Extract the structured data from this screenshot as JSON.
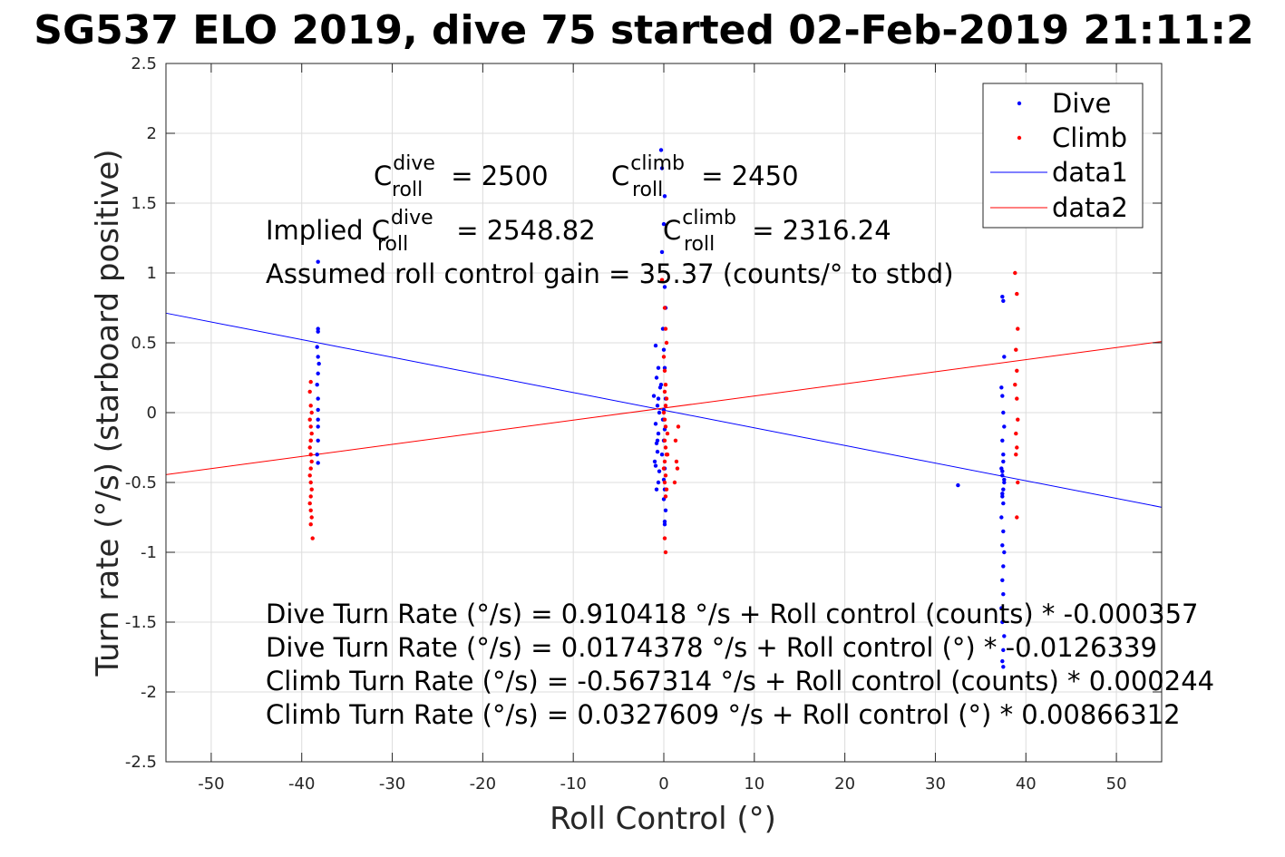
{
  "chart_data": {
    "type": "scatter",
    "title": "SG537 ELO 2019, dive 75 started 02-Feb-2019 21:11:2",
    "xlabel": "Roll Control (°)",
    "ylabel": "Turn rate (°/s) (starboard positive)",
    "xlim": [
      -55,
      55
    ],
    "ylim": [
      -2.5,
      2.5
    ],
    "x_ticks": [
      "-50",
      "-40",
      "-30",
      "-20",
      "-10",
      "0",
      "10",
      "20",
      "30",
      "40",
      "50"
    ],
    "y_ticks": [
      "-2.5",
      "-2",
      "-1.5",
      "-1",
      "-0.5",
      "0",
      "0.5",
      "1",
      "1.5",
      "2",
      "2.5"
    ],
    "grid": true,
    "legend_position": "top-right",
    "legend": [
      "Dive",
      "Climb",
      "data1",
      "data2"
    ],
    "colors": {
      "dive": "#0000ff",
      "climb": "#ff0000",
      "axis": "#262626",
      "grid": "#dcdcdc"
    },
    "series": [
      {
        "name": "Dive",
        "kind": "points",
        "x": [
          -38.2,
          -38.2,
          -38.2,
          -38.3,
          -38.2,
          -38.1,
          -38.2,
          -38.3,
          -38.2,
          -38.2,
          -38.2,
          -38.2,
          -38.2,
          -38.3,
          -38.2,
          -0.9,
          -0.6,
          -0.8,
          -0.4,
          -1.1,
          -0.7,
          -0.5,
          -0.9,
          -0.6,
          -0.8,
          -0.7,
          -1.0,
          -0.5,
          -0.6,
          -0.8,
          -0.9,
          -0.7,
          -0.6,
          -0.3,
          -0.2,
          0.1,
          0.0,
          -0.2,
          0.1,
          0.2,
          -0.1,
          0.0,
          0.1,
          -0.3,
          0.2,
          0.0,
          -0.1,
          0.1,
          0.0,
          -0.2,
          0.1,
          0.0,
          0.1,
          0.0,
          0.2,
          0.1,
          0.1,
          32.5,
          37.4,
          37.5,
          37.6,
          37.3,
          37.4,
          37.5,
          37.6,
          37.4,
          37.5,
          37.3,
          37.4,
          37.6,
          37.5,
          37.4,
          37.5,
          37.6,
          37.4,
          37.5,
          37.3,
          37.5,
          37.4,
          37.6,
          37.5,
          37.4,
          37.5,
          37.3,
          37.4,
          37.6,
          37.5,
          37.4,
          37.5,
          37.4
        ],
        "y": [
          1.08,
          0.6,
          0.58,
          0.47,
          0.4,
          0.35,
          0.28,
          0.2,
          0.1,
          0.02,
          -0.05,
          -0.1,
          -0.2,
          -0.3,
          -0.36,
          0.48,
          0.32,
          0.25,
          0.18,
          0.12,
          0.05,
          0.0,
          -0.08,
          -0.15,
          -0.22,
          -0.28,
          -0.35,
          -0.42,
          -0.5,
          -0.55,
          -0.38,
          -0.2,
          0.1,
          1.88,
          1.75,
          1.55,
          1.35,
          1.15,
          0.9,
          0.75,
          0.6,
          0.45,
          0.32,
          0.2,
          0.1,
          0.02,
          -0.05,
          -0.12,
          -0.2,
          -0.3,
          -0.4,
          -0.48,
          -0.55,
          -0.62,
          -0.7,
          -0.78,
          -0.8,
          -0.52,
          0.83,
          0.8,
          0.4,
          0.18,
          0.12,
          0.0,
          -0.1,
          -0.2,
          -0.3,
          -0.4,
          -0.45,
          -0.5,
          -0.55,
          -0.6,
          -0.65,
          -0.48,
          -0.42,
          -0.35,
          -0.75,
          -0.85,
          -0.95,
          -1.0,
          -1.1,
          -1.2,
          -1.3,
          -1.4,
          -1.5,
          -1.6,
          -1.7,
          -1.78,
          -1.82,
          -0.58
        ]
      },
      {
        "name": "Climb",
        "kind": "points",
        "x": [
          -39.0,
          -39.1,
          -39.0,
          -38.9,
          -39.1,
          -39.0,
          -38.9,
          -39.0,
          -39.1,
          -39.0,
          -38.9,
          -39.0,
          -39.1,
          -39.0,
          -38.9,
          -39.0,
          -39.1,
          -39.0,
          -38.9,
          -39.0,
          -38.8,
          -39.0,
          -0.2,
          0.1,
          0.2,
          0.3,
          0.0,
          0.1,
          0.2,
          0.1,
          0.3,
          0.2,
          0.0,
          0.1,
          0.2,
          0.4,
          0.1,
          0.2,
          0.3,
          0.1,
          0.0,
          0.2,
          0.1,
          0.3,
          0.2,
          0.1,
          0.2,
          0.4,
          1.3,
          1.5,
          1.2,
          1.4,
          1.6,
          38.8,
          39.0,
          39.1,
          38.9,
          39.0,
          38.8,
          39.0,
          39.1,
          38.9,
          39.0,
          38.9,
          39.1,
          39.0
        ],
        "y": [
          0.22,
          0.15,
          0.05,
          0.0,
          -0.05,
          -0.1,
          -0.15,
          -0.2,
          -0.25,
          -0.3,
          -0.35,
          -0.4,
          -0.45,
          -0.5,
          -0.55,
          -0.6,
          -0.65,
          -0.7,
          -0.75,
          -0.8,
          -0.9,
          -0.2,
          0.95,
          0.75,
          0.6,
          0.5,
          0.4,
          0.3,
          0.2,
          0.15,
          0.1,
          0.05,
          0.0,
          -0.05,
          -0.1,
          -0.15,
          -0.2,
          -0.25,
          -0.3,
          -0.35,
          -0.4,
          -0.45,
          -0.5,
          -0.55,
          -0.6,
          -0.9,
          -1.0,
          -0.3,
          -0.2,
          -0.4,
          -0.5,
          -0.35,
          -0.1,
          1.0,
          0.85,
          0.6,
          0.45,
          0.3,
          0.2,
          0.1,
          -0.05,
          -0.15,
          -0.25,
          -0.3,
          -0.5,
          -0.75
        ]
      },
      {
        "name": "data1",
        "kind": "line",
        "slope": -0.0126339,
        "intercept": 0.0174378
      },
      {
        "name": "data2",
        "kind": "line",
        "slope": 0.00866312,
        "intercept": 0.0327609
      }
    ],
    "annotations": {
      "c_roll_dive": {
        "prefix": "C",
        "sup": "dive",
        "sub": "roll",
        "value": " = 2500"
      },
      "c_roll_climb": {
        "prefix": "C",
        "sup": "climb",
        "sub": "roll",
        "value": " = 2450"
      },
      "implied_dive": {
        "prefix": "Implied C",
        "sup": "dive",
        "sub": "roll",
        "value": " = 2548.82"
      },
      "implied_climb": {
        "prefix": "C",
        "sup": "climb",
        "sub": "roll",
        "value": " = 2316.24"
      },
      "gain": "Assumed roll control gain = 35.37 (counts/° to stbd)",
      "equations": [
        "Dive Turn Rate (°/s) = 0.910418 °/s + Roll control (counts) * -0.000357",
        "Dive Turn Rate (°/s) = 0.0174378 °/s + Roll control (°) * -0.0126339",
        "Climb Turn Rate (°/s) = -0.567314 °/s + Roll control (counts) * 0.000244",
        "Climb Turn Rate (°/s) = 0.0327609 °/s + Roll control (°) * 0.00866312"
      ]
    }
  }
}
